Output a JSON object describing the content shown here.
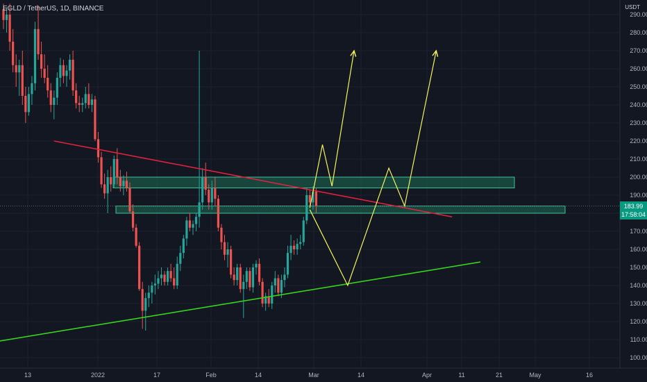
{
  "header": {
    "symbol_label": "EGLD / TetherUS, 1D, BINANCE",
    "currency": "USDT"
  },
  "last_price": {
    "value": "183.99",
    "countdown": "17:58:04"
  },
  "colors": {
    "background": "#131722",
    "up": "#26a69a",
    "down": "#ef5350",
    "zone_fill": "#1e6b52",
    "zone_stroke": "#3fc39b",
    "resistance": "#e0223c",
    "support": "#37d51c",
    "projection": "#f5f55a",
    "axis_text": "#b2b5be",
    "grid": "#1c2030"
  },
  "chart_data": {
    "type": "candlestick",
    "y_axis": {
      "range": [
        95,
        296
      ],
      "ticks": [
        "100.00",
        "110.00",
        "120.00",
        "130.00",
        "140.00",
        "150.00",
        "160.00",
        "170.00",
        "180.00",
        "190.00",
        "200.00",
        "210.00",
        "220.00",
        "230.00",
        "240.00",
        "250.00",
        "260.00",
        "270.00",
        "280.00",
        "290.00"
      ]
    },
    "x_axis": {
      "ticks": [
        "13",
        "2022",
        "17",
        "Feb",
        "14",
        "Mar",
        "14",
        "Apr",
        "11",
        "21",
        "May",
        "16"
      ]
    },
    "candles": [
      {
        "o": 293,
        "h": 296,
        "l": 282,
        "c": 287
      },
      {
        "o": 287,
        "h": 294,
        "l": 280,
        "c": 290
      },
      {
        "o": 290,
        "h": 296,
        "l": 270,
        "c": 275
      },
      {
        "o": 275,
        "h": 282,
        "l": 258,
        "c": 262
      },
      {
        "o": 262,
        "h": 268,
        "l": 250,
        "c": 258
      },
      {
        "o": 258,
        "h": 265,
        "l": 245,
        "c": 262
      },
      {
        "o": 262,
        "h": 270,
        "l": 240,
        "c": 245
      },
      {
        "o": 245,
        "h": 250,
        "l": 230,
        "c": 236
      },
      {
        "o": 236,
        "h": 250,
        "l": 234,
        "c": 246
      },
      {
        "o": 246,
        "h": 256,
        "l": 240,
        "c": 252
      },
      {
        "o": 252,
        "h": 286,
        "l": 248,
        "c": 282
      },
      {
        "o": 282,
        "h": 295,
        "l": 265,
        "c": 268
      },
      {
        "o": 268,
        "h": 275,
        "l": 255,
        "c": 260
      },
      {
        "o": 260,
        "h": 268,
        "l": 252,
        "c": 255
      },
      {
        "o": 255,
        "h": 262,
        "l": 244,
        "c": 248
      },
      {
        "o": 248,
        "h": 252,
        "l": 236,
        "c": 240
      },
      {
        "o": 240,
        "h": 248,
        "l": 232,
        "c": 244
      },
      {
        "o": 244,
        "h": 258,
        "l": 240,
        "c": 255
      },
      {
        "o": 255,
        "h": 266,
        "l": 250,
        "c": 262
      },
      {
        "o": 262,
        "h": 265,
        "l": 252,
        "c": 256
      },
      {
        "o": 256,
        "h": 262,
        "l": 250,
        "c": 259
      },
      {
        "o": 259,
        "h": 268,
        "l": 254,
        "c": 265
      },
      {
        "o": 265,
        "h": 270,
        "l": 245,
        "c": 248
      },
      {
        "o": 248,
        "h": 252,
        "l": 238,
        "c": 241
      },
      {
        "o": 241,
        "h": 245,
        "l": 236,
        "c": 240
      },
      {
        "o": 240,
        "h": 244,
        "l": 236,
        "c": 241
      },
      {
        "o": 241,
        "h": 250,
        "l": 238,
        "c": 246
      },
      {
        "o": 246,
        "h": 252,
        "l": 238,
        "c": 240
      },
      {
        "o": 240,
        "h": 246,
        "l": 236,
        "c": 243
      },
      {
        "o": 243,
        "h": 245,
        "l": 220,
        "c": 221
      },
      {
        "o": 221,
        "h": 225,
        "l": 208,
        "c": 211
      },
      {
        "o": 211,
        "h": 214,
        "l": 194,
        "c": 196
      },
      {
        "o": 196,
        "h": 202,
        "l": 188,
        "c": 191
      },
      {
        "o": 191,
        "h": 204,
        "l": 180,
        "c": 200
      },
      {
        "o": 200,
        "h": 206,
        "l": 192,
        "c": 196
      },
      {
        "o": 196,
        "h": 212,
        "l": 194,
        "c": 210
      },
      {
        "o": 210,
        "h": 216,
        "l": 196,
        "c": 200
      },
      {
        "o": 200,
        "h": 204,
        "l": 192,
        "c": 195
      },
      {
        "o": 195,
        "h": 201,
        "l": 190,
        "c": 198
      },
      {
        "o": 198,
        "h": 203,
        "l": 192,
        "c": 194
      },
      {
        "o": 194,
        "h": 197,
        "l": 180,
        "c": 181
      },
      {
        "o": 181,
        "h": 185,
        "l": 170,
        "c": 172
      },
      {
        "o": 172,
        "h": 174,
        "l": 161,
        "c": 162
      },
      {
        "o": 162,
        "h": 164,
        "l": 137,
        "c": 138
      },
      {
        "o": 138,
        "h": 142,
        "l": 116,
        "c": 126
      },
      {
        "o": 126,
        "h": 136,
        "l": 115,
        "c": 133
      },
      {
        "o": 133,
        "h": 140,
        "l": 128,
        "c": 136
      },
      {
        "o": 136,
        "h": 142,
        "l": 130,
        "c": 140
      },
      {
        "o": 140,
        "h": 146,
        "l": 135,
        "c": 141
      },
      {
        "o": 141,
        "h": 148,
        "l": 138,
        "c": 144
      },
      {
        "o": 144,
        "h": 150,
        "l": 140,
        "c": 146
      },
      {
        "o": 146,
        "h": 148,
        "l": 140,
        "c": 142
      },
      {
        "o": 142,
        "h": 150,
        "l": 140,
        "c": 148
      },
      {
        "o": 148,
        "h": 152,
        "l": 142,
        "c": 144
      },
      {
        "o": 144,
        "h": 150,
        "l": 138,
        "c": 140
      },
      {
        "o": 140,
        "h": 156,
        "l": 138,
        "c": 152
      },
      {
        "o": 152,
        "h": 162,
        "l": 148,
        "c": 158
      },
      {
        "o": 158,
        "h": 168,
        "l": 155,
        "c": 166
      },
      {
        "o": 166,
        "h": 178,
        "l": 162,
        "c": 176
      },
      {
        "o": 176,
        "h": 180,
        "l": 170,
        "c": 172
      },
      {
        "o": 172,
        "h": 176,
        "l": 168,
        "c": 174
      },
      {
        "o": 174,
        "h": 180,
        "l": 170,
        "c": 178
      },
      {
        "o": 178,
        "h": 270,
        "l": 172,
        "c": 186
      },
      {
        "o": 186,
        "h": 205,
        "l": 182,
        "c": 200
      },
      {
        "o": 200,
        "h": 208,
        "l": 190,
        "c": 193
      },
      {
        "o": 193,
        "h": 196,
        "l": 182,
        "c": 186
      },
      {
        "o": 186,
        "h": 198,
        "l": 182,
        "c": 194
      },
      {
        "o": 194,
        "h": 200,
        "l": 184,
        "c": 188
      },
      {
        "o": 188,
        "h": 190,
        "l": 170,
        "c": 172
      },
      {
        "o": 172,
        "h": 174,
        "l": 160,
        "c": 164
      },
      {
        "o": 164,
        "h": 168,
        "l": 154,
        "c": 157
      },
      {
        "o": 157,
        "h": 164,
        "l": 150,
        "c": 160
      },
      {
        "o": 160,
        "h": 162,
        "l": 144,
        "c": 146
      },
      {
        "o": 146,
        "h": 150,
        "l": 140,
        "c": 143
      },
      {
        "o": 143,
        "h": 152,
        "l": 140,
        "c": 150
      },
      {
        "o": 150,
        "h": 152,
        "l": 136,
        "c": 138
      },
      {
        "o": 138,
        "h": 146,
        "l": 122,
        "c": 142
      },
      {
        "o": 142,
        "h": 150,
        "l": 138,
        "c": 148
      },
      {
        "o": 148,
        "h": 150,
        "l": 137,
        "c": 139
      },
      {
        "o": 139,
        "h": 152,
        "l": 136,
        "c": 150
      },
      {
        "o": 150,
        "h": 154,
        "l": 146,
        "c": 152
      },
      {
        "o": 152,
        "h": 155,
        "l": 140,
        "c": 142
      },
      {
        "o": 142,
        "h": 144,
        "l": 128,
        "c": 130
      },
      {
        "o": 130,
        "h": 136,
        "l": 126,
        "c": 134
      },
      {
        "o": 134,
        "h": 138,
        "l": 128,
        "c": 130
      },
      {
        "o": 130,
        "h": 142,
        "l": 127,
        "c": 140
      },
      {
        "o": 140,
        "h": 148,
        "l": 136,
        "c": 144
      },
      {
        "o": 144,
        "h": 146,
        "l": 134,
        "c": 136
      },
      {
        "o": 136,
        "h": 146,
        "l": 133,
        "c": 143
      },
      {
        "o": 143,
        "h": 150,
        "l": 139,
        "c": 146
      },
      {
        "o": 146,
        "h": 162,
        "l": 144,
        "c": 158
      },
      {
        "o": 158,
        "h": 168,
        "l": 154,
        "c": 162
      },
      {
        "o": 162,
        "h": 165,
        "l": 157,
        "c": 160
      },
      {
        "o": 160,
        "h": 166,
        "l": 157,
        "c": 163
      },
      {
        "o": 163,
        "h": 168,
        "l": 160,
        "c": 164
      },
      {
        "o": 164,
        "h": 178,
        "l": 162,
        "c": 176
      },
      {
        "o": 176,
        "h": 194,
        "l": 174,
        "c": 190
      },
      {
        "o": 190,
        "h": 193,
        "l": 184,
        "c": 186
      },
      {
        "o": 186,
        "h": 195,
        "l": 182,
        "c": 192
      },
      {
        "o": 192,
        "h": 194,
        "l": 180,
        "c": 184
      }
    ],
    "zones": [
      {
        "name": "upper-zone",
        "y_low": 194,
        "y_high": 200
      },
      {
        "name": "lower-zone",
        "y_low": 180,
        "y_high": 184
      }
    ],
    "lines": {
      "resistance": [
        {
          "i": 16,
          "y": 220
        },
        {
          "i": 142,
          "y": 178
        }
      ],
      "support": [
        {
          "i": -9,
          "y": 107
        },
        {
          "i": 151,
          "y": 153
        }
      ],
      "projection_a": [
        {
          "i": 97,
          "y": 183
        },
        {
          "i": 101,
          "y": 218
        },
        {
          "i": 104,
          "y": 195
        },
        {
          "i": 111,
          "y": 270
        }
      ],
      "projection_b": [
        {
          "i": 97,
          "y": 182
        },
        {
          "i": 109,
          "y": 140
        },
        {
          "i": 122,
          "y": 205
        },
        {
          "i": 127,
          "y": 184
        },
        {
          "i": 137,
          "y": 270
        }
      ]
    },
    "last_value": 183.99
  }
}
